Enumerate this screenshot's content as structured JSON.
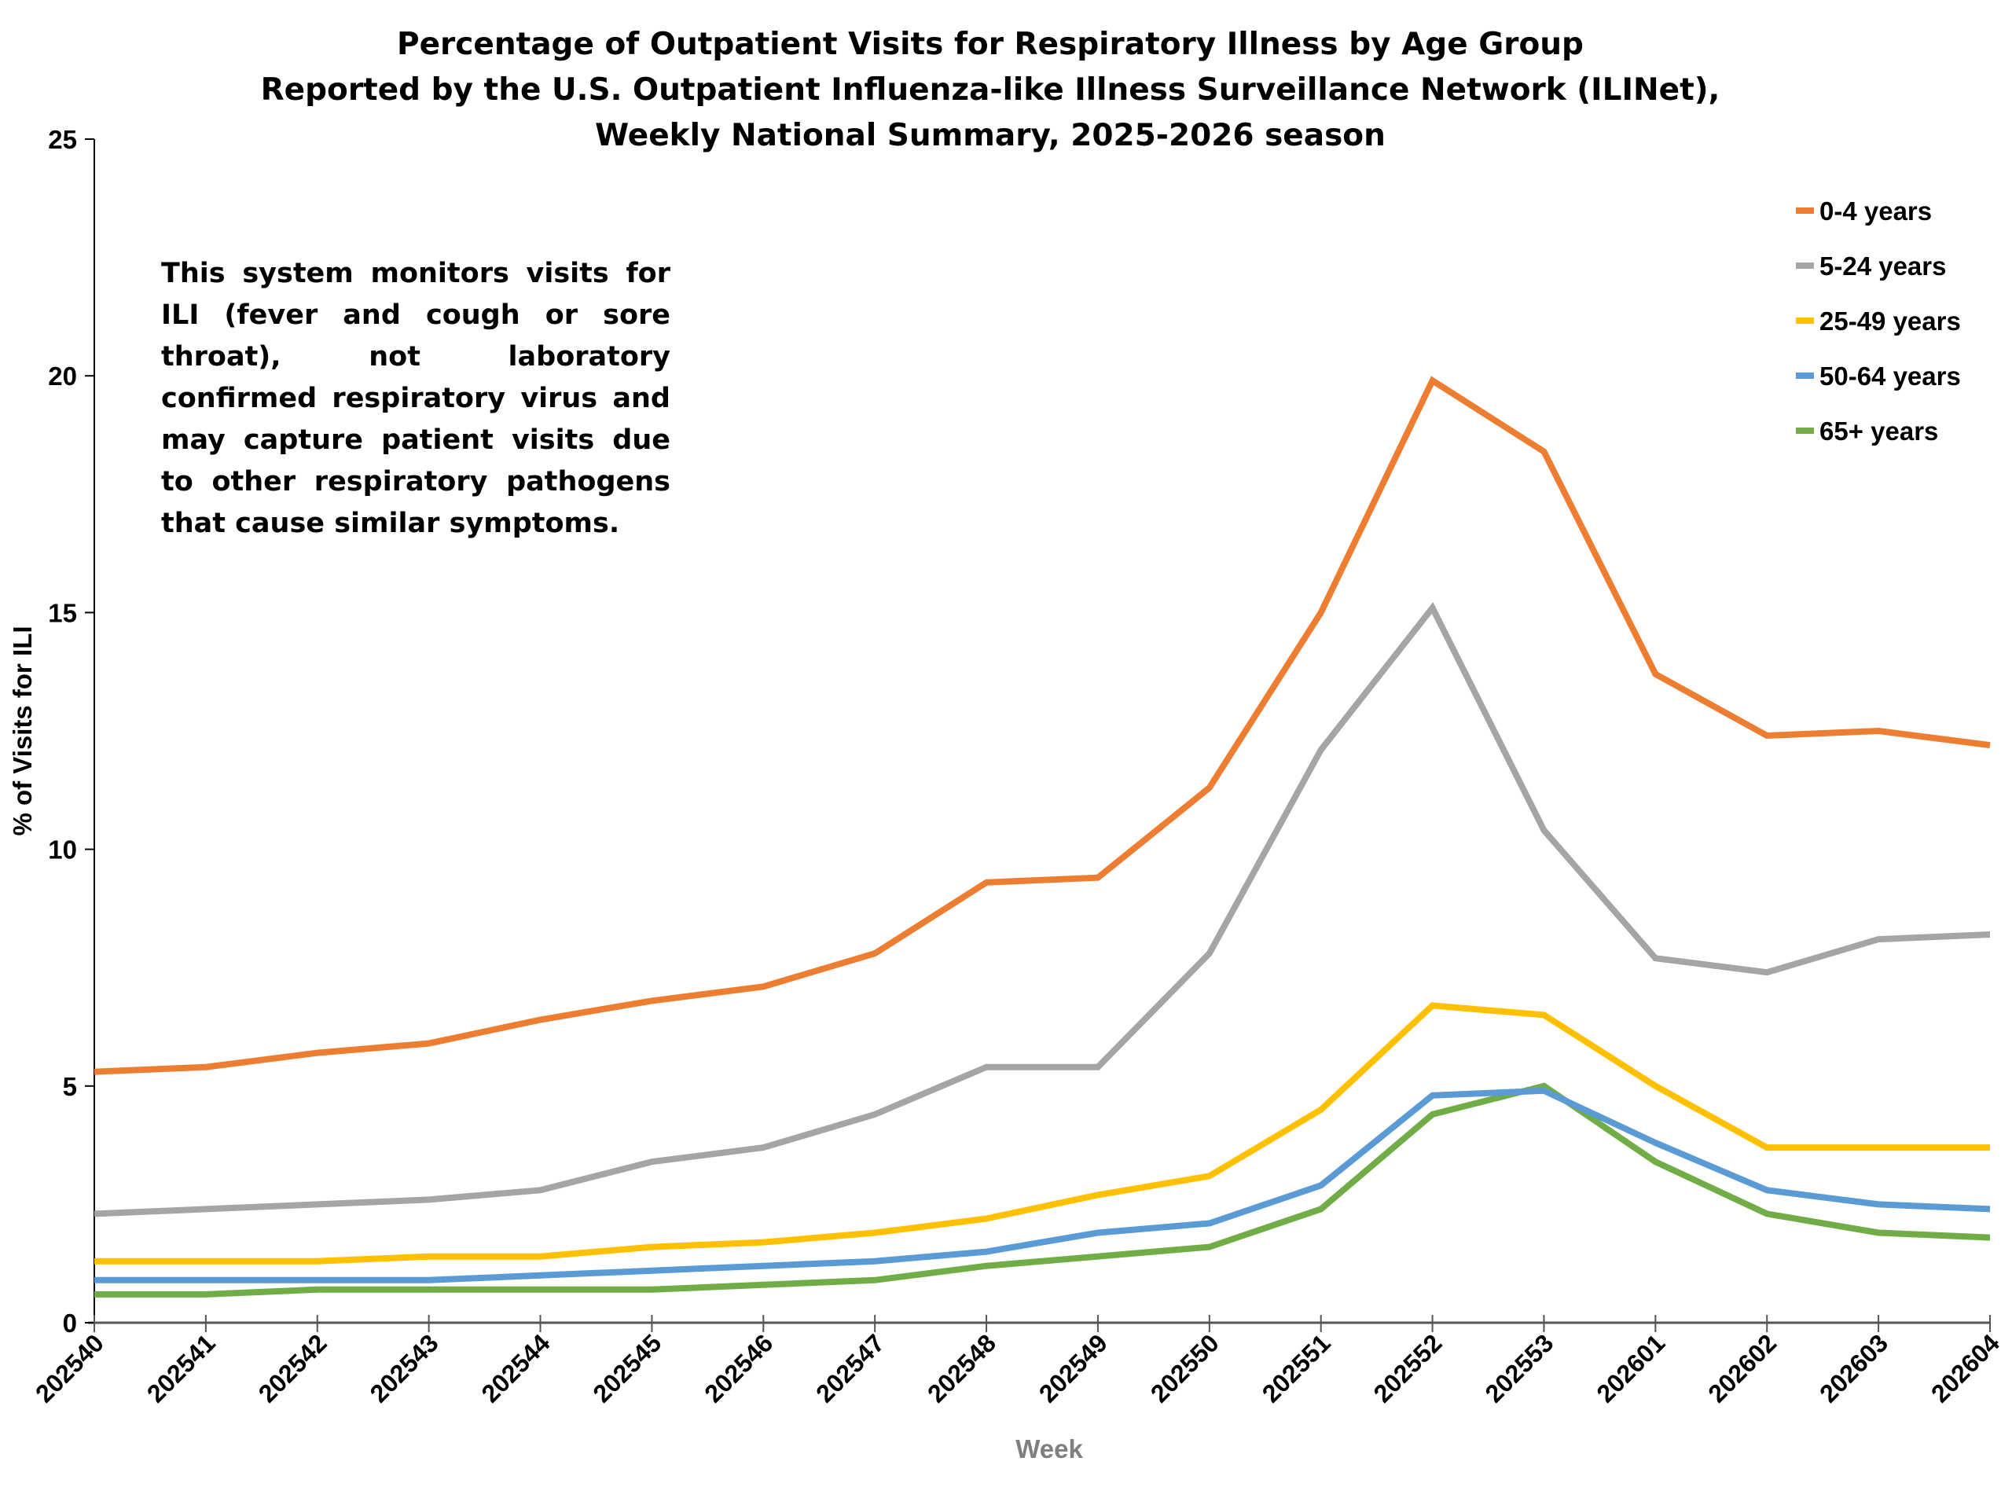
{
  "chart_data": {
    "type": "line",
    "title": [
      "Percentage of Outpatient Visits for Respiratory Illness by Age Group",
      "Reported by the U.S. Outpatient Influenza-like Illness Surveillance Network (ILINet),",
      "Weekly National Summary, 2025-2026 season"
    ],
    "xlabel": "Week",
    "ylabel": "% of Visits for ILI",
    "ylim": [
      0,
      25
    ],
    "yticks": [
      0,
      5,
      10,
      15,
      20,
      25
    ],
    "grid": false,
    "legend_position": "top-right",
    "annotation": "This system monitors visits for ILI (fever and cough or sore throat), not laboratory confirmed respiratory virus and may capture patient visits due to other respiratory pathogens that cause similar symptoms.",
    "categories": [
      "202540",
      "202541",
      "202542",
      "202543",
      "202544",
      "202545",
      "202546",
      "202547",
      "202548",
      "202549",
      "202550",
      "202551",
      "202552",
      "202553",
      "202601",
      "202602",
      "202603",
      "202604"
    ],
    "series": [
      {
        "name": "0-4 years",
        "color": "#ED7D31",
        "values": [
          5.3,
          5.4,
          5.7,
          5.9,
          6.4,
          6.8,
          7.1,
          7.8,
          9.3,
          9.4,
          11.3,
          15.0,
          19.9,
          18.4,
          13.7,
          12.4,
          12.5,
          12.2
        ]
      },
      {
        "name": "5-24 years",
        "color": "#A5A5A5",
        "values": [
          2.3,
          2.4,
          2.5,
          2.6,
          2.8,
          3.4,
          3.7,
          4.4,
          5.4,
          5.4,
          7.8,
          12.1,
          15.1,
          10.4,
          7.7,
          7.4,
          8.1,
          8.2
        ]
      },
      {
        "name": "25-49 years",
        "color": "#FFC000",
        "values": [
          1.3,
          1.3,
          1.3,
          1.4,
          1.4,
          1.6,
          1.7,
          1.9,
          2.2,
          2.7,
          3.1,
          4.5,
          6.7,
          6.5,
          5.0,
          3.7,
          3.7,
          3.7
        ]
      },
      {
        "name": "50-64 years",
        "color": "#5B9BD5",
        "values": [
          0.9,
          0.9,
          0.9,
          0.9,
          1.0,
          1.1,
          1.2,
          1.3,
          1.5,
          1.9,
          2.1,
          2.9,
          4.8,
          4.9,
          3.8,
          2.8,
          2.5,
          2.4
        ]
      },
      {
        "name": "65+ years",
        "color": "#70AD47",
        "values": [
          0.6,
          0.6,
          0.7,
          0.7,
          0.7,
          0.7,
          0.8,
          0.9,
          1.2,
          1.4,
          1.6,
          2.4,
          4.4,
          5.0,
          3.4,
          2.3,
          1.9,
          1.8
        ]
      }
    ]
  }
}
